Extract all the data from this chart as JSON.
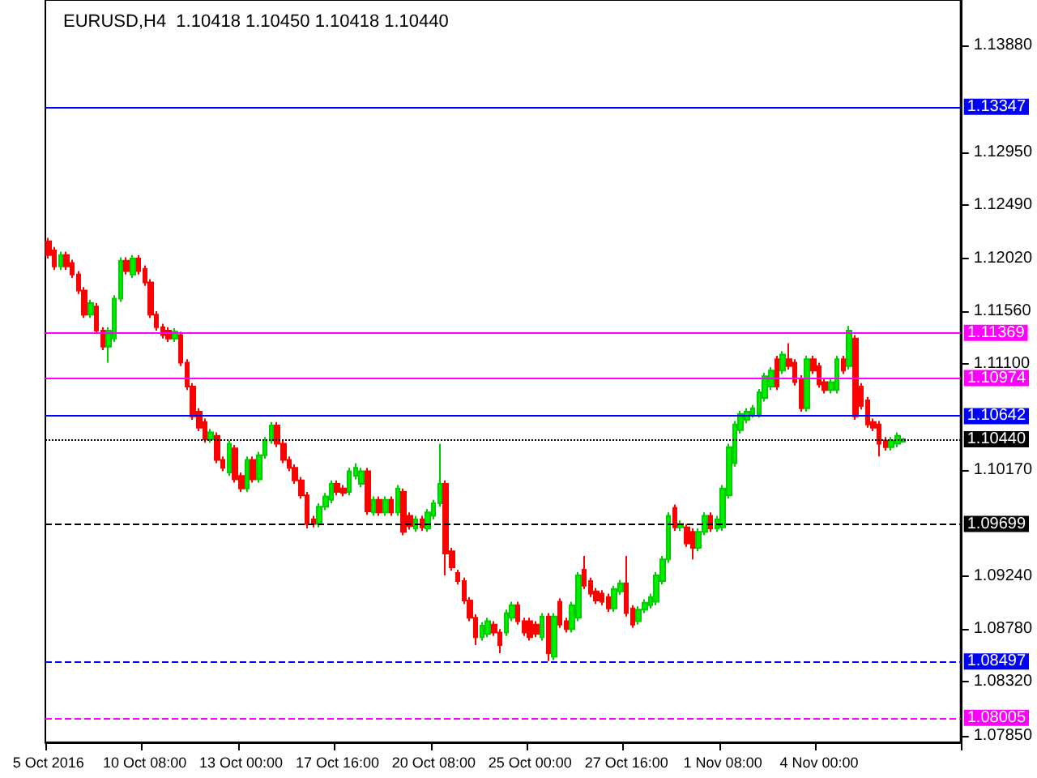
{
  "chart_data": {
    "type": "candlestick",
    "title": "EURUSD,H4  1.10418 1.10450 1.10418 1.10440",
    "categories": [
      "5 Oct 2016",
      null,
      null,
      null,
      null,
      null,
      null,
      null,
      null,
      null,
      null,
      null,
      null,
      null,
      null,
      null,
      "10 Oct 08:00",
      null,
      null,
      null,
      null,
      null,
      null,
      null,
      null,
      null,
      null,
      null,
      null,
      null,
      null,
      null,
      "13 Oct 00:00",
      null,
      null,
      null,
      null,
      null,
      null,
      null,
      null,
      null,
      null,
      null,
      null,
      null,
      null,
      null,
      "17 Oct 16:00",
      null,
      null,
      null,
      null,
      null,
      null,
      null,
      null,
      null,
      null,
      null,
      null,
      null,
      null,
      null,
      "20 Oct 08:00",
      null,
      null,
      null,
      null,
      null,
      null,
      null,
      null,
      null,
      null,
      null,
      null,
      null,
      null,
      null,
      "25 Oct 00:00",
      null,
      null,
      null,
      null,
      null,
      null,
      null,
      null,
      null,
      null,
      null,
      null,
      null,
      null,
      null,
      "27 Oct 16:00",
      null,
      null,
      null,
      null,
      null,
      null,
      null,
      null,
      null,
      null,
      null,
      null,
      null,
      null,
      null,
      "1 Nov 08:00",
      null,
      null,
      null,
      null,
      null,
      null,
      null,
      null,
      null,
      null,
      null,
      null,
      null,
      null,
      null,
      "4 Nov 00:00",
      null,
      null,
      null,
      null,
      null,
      null,
      null,
      null,
      null,
      null,
      null,
      null,
      null,
      null,
      null,
      null,
      null,
      null,
      null,
      null,
      null,
      null,
      null
    ],
    "ohlc": [
      [
        1.1217,
        1.122,
        1.1202,
        1.1205
      ],
      [
        1.1209,
        1.1212,
        1.1192,
        1.1195
      ],
      [
        1.1195,
        1.1208,
        1.1192,
        1.1205
      ],
      [
        1.1205,
        1.1208,
        1.1192,
        1.1195
      ],
      [
        1.1198,
        1.1201,
        1.1185,
        1.1188
      ],
      [
        1.1188,
        1.1191,
        1.1171,
        1.1174
      ],
      [
        1.1174,
        1.1177,
        1.115,
        1.1153
      ],
      [
        1.1153,
        1.1166,
        1.115,
        1.1163
      ],
      [
        1.116,
        1.1163,
        1.1136,
        1.1139
      ],
      [
        1.1139,
        1.1142,
        1.1122,
        1.1125
      ],
      [
        1.1125,
        1.1142,
        1.1111,
        1.1139
      ],
      [
        1.1132,
        1.117,
        1.1129,
        1.1167
      ],
      [
        1.1167,
        1.1203,
        1.1164,
        1.12
      ],
      [
        1.12,
        1.1203,
        1.1188,
        1.1191
      ],
      [
        1.1188,
        1.1205,
        1.1185,
        1.1202
      ],
      [
        1.1202,
        1.1205,
        1.1188,
        1.1191
      ],
      [
        1.1193,
        1.1196,
        1.1178,
        1.1181
      ],
      [
        1.1181,
        1.1184,
        1.115,
        1.1153
      ],
      [
        1.1153,
        1.1156,
        1.1139,
        1.1142
      ],
      [
        1.1142,
        1.1145,
        1.1132,
        1.1135
      ],
      [
        1.1139,
        1.1142,
        1.1129,
        1.1132
      ],
      [
        1.1132,
        1.1141,
        1.1129,
        1.1138
      ],
      [
        1.1135,
        1.1138,
        1.1108,
        1.1111
      ],
      [
        1.1111,
        1.1114,
        1.1087,
        1.109
      ],
      [
        1.109,
        1.1093,
        1.1061,
        1.1064
      ],
      [
        1.1068,
        1.1071,
        1.1051,
        1.1054
      ],
      [
        1.1059,
        1.1062,
        1.1041,
        1.1044
      ],
      [
        1.1044,
        1.1053,
        1.1041,
        1.105
      ],
      [
        1.1047,
        1.105,
        1.1023,
        1.1026
      ],
      [
        1.1026,
        1.1029,
        1.1016,
        1.1019
      ],
      [
        1.1015,
        1.1043,
        1.1012,
        1.104
      ],
      [
        1.1036,
        1.1039,
        1.1006,
        1.1009
      ],
      [
        1.1012,
        1.1015,
        1.0998,
        1.1001
      ],
      [
        1.1001,
        1.1029,
        1.0998,
        1.1026
      ],
      [
        1.1026,
        1.1029,
        1.1006,
        1.1009
      ],
      [
        1.1009,
        1.1033,
        1.1006,
        1.103
      ],
      [
        1.103,
        1.1046,
        1.1027,
        1.1043
      ],
      [
        1.1043,
        1.1059,
        1.104,
        1.1056
      ],
      [
        1.1056,
        1.1059,
        1.1037,
        1.104
      ],
      [
        1.104,
        1.1043,
        1.1023,
        1.1026
      ],
      [
        1.1026,
        1.1029,
        1.1016,
        1.1019
      ],
      [
        1.1019,
        1.1022,
        1.1005,
        1.1008
      ],
      [
        1.1008,
        1.1011,
        1.0992,
        1.0995
      ],
      [
        1.0995,
        1.0998,
        1.0966,
        1.097
      ],
      [
        1.0974,
        1.0977,
        1.0967,
        1.097
      ],
      [
        1.097,
        1.0988,
        1.0967,
        1.0985
      ],
      [
        1.0985,
        1.0997,
        1.0982,
        1.0994
      ],
      [
        1.0991,
        1.1008,
        1.0988,
        1.1005
      ],
      [
        1.1005,
        1.1008,
        1.0995,
        1.0998
      ],
      [
        1.1001,
        1.1004,
        1.0994,
        1.0997
      ],
      [
        1.0998,
        1.1019,
        1.0995,
        1.1016
      ],
      [
        1.1012,
        1.1023,
        1.1009,
        1.1019
      ],
      [
        1.1005,
        1.1019,
        1.1002,
        1.1016
      ],
      [
        1.1016,
        1.1019,
        1.0978,
        1.0981
      ],
      [
        1.098,
        1.0994,
        1.0977,
        1.0991
      ],
      [
        1.0991,
        1.0994,
        1.0977,
        1.098
      ],
      [
        1.098,
        1.0994,
        1.0977,
        1.0991
      ],
      [
        1.0991,
        1.0994,
        1.0977,
        1.098
      ],
      [
        1.098,
        1.1004,
        1.0977,
        1.1001
      ],
      [
        1.0998,
        1.1001,
        1.096,
        1.0963
      ],
      [
        1.0977,
        1.098,
        1.0965,
        1.0968
      ],
      [
        1.0966,
        1.0977,
        1.0963,
        1.0974
      ],
      [
        1.0974,
        1.0977,
        1.0964,
        1.0967
      ],
      [
        1.0966,
        1.0983,
        1.0963,
        1.098
      ],
      [
        1.0977,
        1.0991,
        1.0974,
        1.0988
      ],
      [
        1.0988,
        1.104,
        1.0985,
        1.1005
      ],
      [
        1.1005,
        1.1008,
        1.0925,
        1.0944
      ],
      [
        1.0946,
        1.0949,
        1.0929,
        1.0932
      ],
      [
        1.0927,
        1.093,
        1.0917,
        1.092
      ],
      [
        1.092,
        1.0923,
        1.09,
        1.0903
      ],
      [
        1.0903,
        1.0906,
        1.0885,
        1.0888
      ],
      [
        1.0888,
        1.0891,
        1.0864,
        1.0871
      ],
      [
        1.0871,
        1.0884,
        1.0868,
        1.0881
      ],
      [
        1.0874,
        1.0888,
        1.0871,
        1.0885
      ],
      [
        1.0882,
        1.0885,
        1.0872,
        1.0875
      ],
      [
        1.0875,
        1.0878,
        1.0857,
        1.0864
      ],
      [
        1.0875,
        1.0895,
        1.0872,
        1.0892
      ],
      [
        1.0888,
        1.0902,
        1.0885,
        1.0899
      ],
      [
        1.0899,
        1.0902,
        1.0882,
        1.0885
      ],
      [
        1.0885,
        1.0888,
        1.0872,
        1.0875
      ],
      [
        1.0885,
        1.0888,
        1.0868,
        1.0871
      ],
      [
        1.0882,
        1.0885,
        1.0871,
        1.0874
      ],
      [
        1.0871,
        1.0892,
        1.0868,
        1.0889
      ],
      [
        1.0889,
        1.0892,
        1.085,
        1.0857
      ],
      [
        1.0854,
        1.0892,
        1.0851,
        1.0889
      ],
      [
        1.0902,
        1.0905,
        1.0879,
        1.0882
      ],
      [
        1.0885,
        1.0888,
        1.0875,
        1.0878
      ],
      [
        1.0878,
        1.0902,
        1.0875,
        1.0899
      ],
      [
        1.0888,
        1.0928,
        1.0885,
        1.0925
      ],
      [
        1.093,
        1.0942,
        1.0913,
        1.0916
      ],
      [
        1.092,
        1.0923,
        1.0906,
        1.0909
      ],
      [
        1.0911,
        1.0914,
        1.09,
        1.0903
      ],
      [
        1.0909,
        1.0912,
        1.0899,
        1.0902
      ],
      [
        1.0906,
        1.0909,
        1.0893,
        1.0896
      ],
      [
        1.0896,
        1.0916,
        1.0893,
        1.0913
      ],
      [
        1.0911,
        1.0921,
        1.0908,
        1.0918
      ],
      [
        1.0918,
        1.0942,
        1.0889,
        1.0892
      ],
      [
        1.0896,
        1.0899,
        1.0879,
        1.0882
      ],
      [
        1.0885,
        1.0898,
        1.0882,
        1.0895
      ],
      [
        1.0895,
        1.0904,
        1.0892,
        1.0901
      ],
      [
        1.0899,
        1.0909,
        1.0896,
        1.0906
      ],
      [
        1.0902,
        1.0928,
        1.0899,
        1.0925
      ],
      [
        1.092,
        1.0942,
        1.0917,
        1.0939
      ],
      [
        1.0939,
        1.098,
        1.0936,
        1.0977
      ],
      [
        1.0984,
        1.0987,
        1.0964,
        1.0967
      ],
      [
        1.0967,
        1.0973,
        1.0964,
        1.097
      ],
      [
        1.0967,
        1.097,
        1.095,
        1.0953
      ],
      [
        1.0963,
        1.0966,
        1.0939,
        1.0949
      ],
      [
        1.0949,
        1.0966,
        1.0946,
        1.0963
      ],
      [
        1.0963,
        1.098,
        1.096,
        1.0977
      ],
      [
        1.0977,
        1.098,
        1.0963,
        1.0966
      ],
      [
        1.0966,
        1.0977,
        1.0963,
        1.0974
      ],
      [
        1.0967,
        1.1004,
        1.0964,
        1.1001
      ],
      [
        1.0995,
        1.104,
        1.0992,
        1.1037
      ],
      [
        1.1023,
        1.106,
        1.102,
        1.1057
      ],
      [
        1.1052,
        1.1069,
        1.1049,
        1.1066
      ],
      [
        1.1061,
        1.1071,
        1.1058,
        1.1068
      ],
      [
        1.1066,
        1.1074,
        1.1063,
        1.1071
      ],
      [
        1.1066,
        1.1088,
        1.1063,
        1.1085
      ],
      [
        1.108,
        1.1102,
        1.1077,
        1.1099
      ],
      [
        1.109,
        1.1107,
        1.1087,
        1.1104
      ],
      [
        1.1114,
        1.1117,
        1.1087,
        1.109
      ],
      [
        1.1104,
        1.1121,
        1.1101,
        1.1118
      ],
      [
        1.1114,
        1.1128,
        1.1105,
        1.1108
      ],
      [
        1.1111,
        1.1114,
        1.1091,
        1.1094
      ],
      [
        1.1097,
        1.11,
        1.1068,
        1.1071
      ],
      [
        1.1071,
        1.1117,
        1.1068,
        1.1114
      ],
      [
        1.1114,
        1.1117,
        1.1101,
        1.1104
      ],
      [
        1.1108,
        1.1111,
        1.1089,
        1.1092
      ],
      [
        1.1094,
        1.1097,
        1.1084,
        1.1087
      ],
      [
        1.1087,
        1.1097,
        1.1084,
        1.1094
      ],
      [
        1.1087,
        1.1117,
        1.1084,
        1.1114
      ],
      [
        1.1114,
        1.1117,
        1.1101,
        1.1104
      ],
      [
        1.1108,
        1.1143,
        1.1105,
        1.1139
      ],
      [
        1.1132,
        1.1135,
        1.1061,
        1.1064
      ],
      [
        1.109,
        1.1093,
        1.107,
        1.1073
      ],
      [
        1.1078,
        1.1081,
        1.1054,
        1.1057
      ],
      [
        1.1059,
        1.1062,
        1.1051,
        1.1054
      ],
      [
        1.1057,
        1.106,
        1.1029,
        1.104
      ],
      [
        1.1043,
        1.1046,
        1.1034,
        1.1037
      ],
      [
        1.1037,
        1.1046,
        1.1034,
        1.1043
      ],
      [
        1.104,
        1.105,
        1.1037,
        1.1047
      ],
      [
        1.10418,
        1.1045,
        1.10418,
        1.1044
      ],
      null,
      null,
      null,
      null,
      null,
      null,
      null,
      null,
      null
    ],
    "ylim": [
      1.0779,
      1.1428
    ],
    "yticks": [
      {
        "value": 1.0785,
        "label": "1.07850"
      },
      {
        "value": 1.0832,
        "label": "1.08320"
      },
      {
        "value": 1.0878,
        "label": "1.08780"
      },
      {
        "value": 1.0924,
        "label": "1.09240"
      },
      {
        "value": 1.1017,
        "label": "1.10170"
      },
      {
        "value": 1.111,
        "label": "1.11100"
      },
      {
        "value": 1.1156,
        "label": "1.11560"
      },
      {
        "value": 1.1202,
        "label": "1.12020"
      },
      {
        "value": 1.1249,
        "label": "1.12490"
      },
      {
        "value": 1.1295,
        "label": "1.12950"
      },
      {
        "value": 1.1388,
        "label": "1.13880"
      }
    ],
    "ref_lines": [
      {
        "axis": "y",
        "value": 1.13347,
        "label": "1.13347",
        "color": "#0000ff",
        "line_style": "solid"
      },
      {
        "axis": "y",
        "value": 1.11369,
        "label": "1.11369",
        "color": "#ff00ff",
        "line_style": "solid"
      },
      {
        "axis": "y",
        "value": 1.10974,
        "label": "1.10974",
        "color": "#ff00ff",
        "line_style": "solid"
      },
      {
        "axis": "y",
        "value": 1.10642,
        "label": "1.10642",
        "color": "#0000ff",
        "line_style": "solid"
      },
      {
        "axis": "y",
        "value": 1.1044,
        "label": "1.10440",
        "color": "#000000",
        "line_style": "dotted"
      },
      {
        "axis": "y",
        "value": 1.09699,
        "label": "1.09699",
        "color": "#000000",
        "line_style": "dashed"
      },
      {
        "axis": "y",
        "value": 1.08497,
        "label": "1.08497",
        "color": "#0000ff",
        "line_style": "dashed"
      },
      {
        "axis": "y",
        "value": 1.08005,
        "label": "1.08005",
        "color": "#ff00ff",
        "line_style": "dashed"
      }
    ]
  }
}
